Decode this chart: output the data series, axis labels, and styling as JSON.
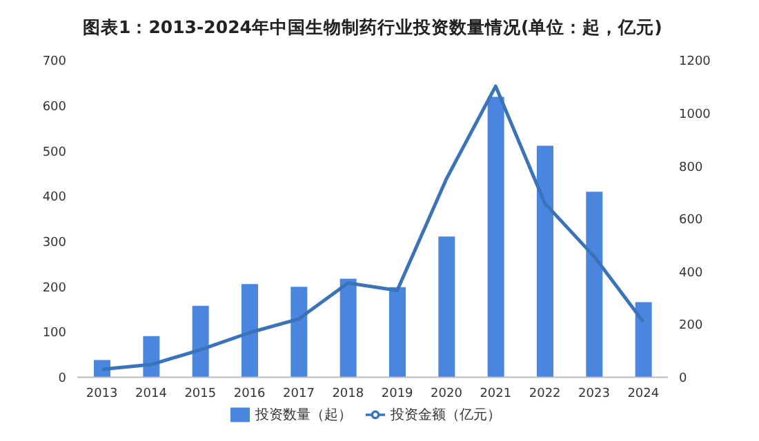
{
  "chart_data": {
    "type": "bar",
    "title": "图表1：2013-2024年中国生物制药行业投资数量情况(单位：起，亿元)",
    "categories": [
      "2013",
      "2014",
      "2015",
      "2016",
      "2017",
      "2018",
      "2019",
      "2020",
      "2021",
      "2022",
      "2023",
      "2024"
    ],
    "series": [
      {
        "name": "投资数量（起）",
        "color": "#4a86e0",
        "values": [
          38,
          91,
          158,
          206,
          200,
          218,
          199,
          311,
          620,
          512,
          410,
          166
        ]
      },
      {
        "name": "投资金额（亿元）",
        "type": "line",
        "axis": "y2",
        "color": "#3b73b9",
        "values": [
          30,
          48,
          104,
          169,
          221,
          357,
          329,
          752,
          1103,
          659,
          458,
          210
        ]
      }
    ],
    "ylim": [
      0,
      700
    ],
    "yticks": [
      0,
      100,
      200,
      300,
      400,
      500,
      600,
      700
    ],
    "y2lim": [
      0,
      1200
    ],
    "y2ticks": [
      0,
      200,
      400,
      600,
      800,
      1000,
      1200
    ],
    "grid": false,
    "legend": "bottom",
    "marker": "none",
    "line_style": "solid"
  }
}
